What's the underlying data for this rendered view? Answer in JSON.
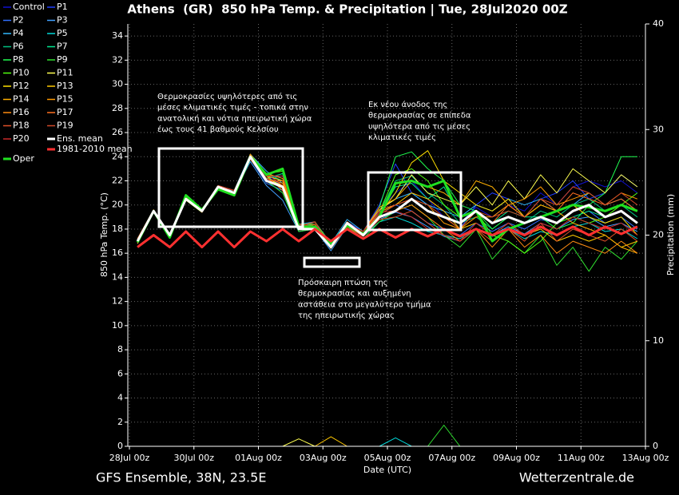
{
  "chart_data": {
    "type": "line",
    "title": "Athens  (GR)  850 hPa Temp. & Precipitation | Tue, 28Jul2020 00Z",
    "ylabel": "850 hPa Temp. (°C)",
    "y2label": "Precipitation (mm)",
    "xlabel": "Date (UTC)",
    "source_left": "GFS Ensemble, 38N, 23.5E",
    "source_right": "Wetterzentrale.de",
    "grid": true,
    "xlim": [
      0,
      16
    ],
    "xticks": [
      {
        "value": 0,
        "label": "28Jul 00z"
      },
      {
        "value": 2,
        "label": "30Jul 00z"
      },
      {
        "value": 4,
        "label": "01Aug 00z"
      },
      {
        "value": 6,
        "label": "03Aug 00z"
      },
      {
        "value": 8,
        "label": "05Aug 00z"
      },
      {
        "value": 10,
        "label": "07Aug 00z"
      },
      {
        "value": 12,
        "label": "09Aug 00z"
      },
      {
        "value": 14,
        "label": "11Aug 00z"
      },
      {
        "value": 16,
        "label": "13Aug 00z"
      }
    ],
    "ylim": [
      0,
      35
    ],
    "yticks": [
      0,
      2,
      4,
      6,
      8,
      10,
      12,
      14,
      16,
      18,
      20,
      22,
      24,
      26,
      28,
      30,
      32,
      34
    ],
    "y2lim": [
      0,
      40
    ],
    "y2ticks": [
      0,
      10,
      20,
      30,
      40
    ],
    "x": [
      0.25,
      0.75,
      1.25,
      1.75,
      2.25,
      2.75,
      3.25,
      3.75,
      4.25,
      4.75,
      5.25,
      5.75,
      6.25,
      6.75,
      7.25,
      7.75,
      8.25,
      8.75,
      9.25,
      9.75,
      10.25,
      10.75,
      11.25,
      11.75,
      12.25,
      12.75,
      13.25,
      13.75,
      14.25,
      14.75,
      15.25,
      15.75
    ],
    "series": [
      {
        "name": "Control",
        "color": "#1010d0",
        "values": [
          17,
          19.6,
          17.4,
          20.4,
          19.6,
          21.6,
          21.2,
          23.8,
          22.4,
          21.6,
          18.2,
          18.4,
          16.8,
          18.2,
          17.4,
          19.6,
          21,
          22,
          20.5,
          19,
          18.5,
          19.8,
          19,
          20,
          19.5,
          21,
          20,
          21.5,
          22,
          21.5,
          22,
          21
        ]
      },
      {
        "name": "P1",
        "color": "#2040ff",
        "values": [
          16.9,
          19.4,
          17.6,
          20.6,
          19.4,
          21.4,
          21,
          24.2,
          22.2,
          22.4,
          18,
          18.6,
          16.6,
          18.6,
          17.8,
          20,
          23.4,
          21,
          20,
          19.5,
          18,
          20,
          21,
          20.5,
          19,
          20.5,
          21,
          22,
          20.5,
          21,
          22.5,
          21.5
        ]
      },
      {
        "name": "P2",
        "color": "#3070ff",
        "values": [
          17.1,
          19.5,
          17.4,
          20.5,
          19.5,
          21.5,
          21,
          23.8,
          21.8,
          21.2,
          18.2,
          18.2,
          16.4,
          18.4,
          17.6,
          19.2,
          20,
          19.5,
          18.5,
          18,
          17.5,
          18.5,
          17.8,
          18.5,
          18,
          18.8,
          18.5,
          19,
          19.5,
          18.5,
          19,
          18
        ]
      },
      {
        "name": "P3",
        "color": "#40a0ff",
        "values": [
          17,
          19.6,
          17.5,
          20.4,
          19.4,
          21.6,
          21,
          23.6,
          21.6,
          20.4,
          17.8,
          18,
          16.2,
          18.2,
          17.4,
          18.8,
          19.4,
          19,
          18.2,
          17.4,
          17,
          18,
          17.5,
          18.2,
          17.6,
          18.5,
          18,
          18.8,
          19,
          18.2,
          18.5,
          17.8
        ]
      },
      {
        "name": "P4",
        "color": "#30b8ff",
        "values": [
          16.8,
          19.4,
          17.6,
          20.6,
          19.6,
          21.4,
          21.2,
          24.2,
          22.8,
          21.8,
          18.4,
          18.6,
          16.8,
          18.8,
          17.8,
          19.6,
          20.5,
          21,
          20,
          19.5,
          19,
          20,
          19.5,
          20.5,
          20,
          20.5,
          19.5,
          20,
          21,
          20,
          20.5,
          19.5
        ]
      },
      {
        "name": "P5",
        "color": "#00d8d8",
        "values": [
          17,
          19.5,
          17.5,
          20.5,
          19.5,
          21.5,
          21,
          24,
          22,
          21,
          18,
          18.2,
          16.6,
          18.4,
          17.4,
          18.6,
          19,
          18.5,
          17.8,
          17.5,
          17.2,
          18,
          17.4,
          18,
          17.2,
          17.8,
          17.5,
          18.2,
          18.5,
          17.8,
          18,
          17.2
        ]
      },
      {
        "name": "P6",
        "color": "#00c080",
        "values": [
          17.2,
          19.6,
          17.4,
          20.6,
          19.6,
          21.6,
          21,
          24,
          22.6,
          22,
          18.2,
          18.4,
          16.4,
          18.2,
          17.6,
          19.4,
          22,
          22.4,
          21,
          20,
          18.5,
          19,
          18,
          19,
          18.5,
          19.5,
          19,
          20,
          20.5,
          19.5,
          20,
          19
        ]
      },
      {
        "name": "P7",
        "color": "#00e890",
        "values": [
          17,
          19.5,
          17.6,
          20.4,
          19.4,
          21.4,
          20.8,
          23.8,
          22.2,
          22.6,
          18,
          18.2,
          16.6,
          18.6,
          17.4,
          19.2,
          21.5,
          21.8,
          20.5,
          21.5,
          19,
          19.5,
          18.5,
          19.5,
          19,
          19,
          18.5,
          19,
          19.5,
          19,
          19.5,
          18.5
        ]
      },
      {
        "name": "P8",
        "color": "#20ff50",
        "values": [
          16.9,
          19.4,
          17.5,
          20.6,
          19.6,
          21.6,
          21.2,
          24,
          22.4,
          21.4,
          18.2,
          18.6,
          16.8,
          18.4,
          17.6,
          19.8,
          24,
          24.4,
          23,
          22,
          20,
          19.5,
          18,
          19,
          18.5,
          19,
          18,
          18.5,
          20,
          21,
          24,
          24
        ]
      },
      {
        "name": "P9",
        "color": "#30e030",
        "values": [
          17.1,
          19.6,
          17.4,
          20.4,
          19.4,
          21.4,
          21,
          24,
          22,
          21,
          17.8,
          18,
          16.4,
          18.2,
          17.2,
          18.6,
          19.5,
          20,
          19,
          17.5,
          16.5,
          18,
          15.5,
          17,
          16,
          17.5,
          15,
          16.5,
          14.5,
          16.5,
          15.5,
          17
        ]
      },
      {
        "name": "P10",
        "color": "#50ff10",
        "values": [
          17,
          19.5,
          17.5,
          20.5,
          19.5,
          21.5,
          21,
          24.2,
          22.6,
          22.8,
          18.4,
          18.4,
          16.6,
          18.6,
          17.6,
          19.4,
          22.5,
          23,
          22,
          20,
          19,
          19.5,
          17.5,
          17,
          16,
          17,
          18.5,
          19,
          18.5,
          19,
          20,
          21
        ]
      },
      {
        "name": "P11",
        "color": "#ffff50",
        "values": [
          16.8,
          19.4,
          17.6,
          20.6,
          19.6,
          21.6,
          21.2,
          24,
          22.2,
          21.6,
          18.2,
          18.2,
          16.8,
          18.4,
          17.8,
          19.6,
          20.5,
          22.5,
          21,
          20.5,
          20,
          21.5,
          20,
          22,
          20.5,
          22.5,
          21,
          23,
          22,
          21,
          22.5,
          21.5
        ]
      },
      {
        "name": "P12",
        "color": "#ffe000",
        "values": [
          17.2,
          19.6,
          17.4,
          20.4,
          19.4,
          21.4,
          20.8,
          24.2,
          22.4,
          22,
          18,
          18.4,
          16.4,
          18.2,
          17.4,
          19.2,
          21,
          23.5,
          24.5,
          22,
          21,
          20,
          19.5,
          20.5,
          19,
          20,
          19.5,
          20,
          19,
          18.5,
          19,
          17.5
        ]
      },
      {
        "name": "P13",
        "color": "#ffc800",
        "values": [
          17,
          19.5,
          17.5,
          20.5,
          19.5,
          21.5,
          21,
          23.8,
          22,
          21.4,
          18.2,
          18.6,
          16.6,
          18.6,
          17.6,
          19.4,
          20,
          21,
          20.5,
          19.5,
          18,
          18.5,
          17.5,
          18.5,
          17.5,
          18,
          17,
          17.5,
          17,
          17.5,
          16.5,
          17
        ]
      },
      {
        "name": "P14",
        "color": "#ffb000",
        "values": [
          16.9,
          19.4,
          17.6,
          20.4,
          19.6,
          21.6,
          21.2,
          24,
          22.6,
          22.2,
          18.4,
          18.2,
          16.8,
          18.4,
          17.8,
          19.8,
          20.5,
          22,
          21.5,
          21,
          20,
          22,
          21.5,
          20,
          19,
          20,
          19.5,
          18.5,
          18,
          17.5,
          16.5,
          16
        ]
      },
      {
        "name": "P15",
        "color": "#ff9a00",
        "values": [
          17.1,
          19.6,
          17.5,
          20.6,
          19.4,
          21.4,
          21,
          24,
          22.2,
          21.8,
          18,
          18.4,
          16.4,
          18.2,
          17.4,
          19,
          19.5,
          20.5,
          20,
          18.5,
          18,
          19,
          19,
          20,
          20.5,
          21.5,
          20,
          20.5,
          21,
          20,
          21,
          20.5
        ]
      },
      {
        "name": "P16",
        "color": "#ff8c10",
        "values": [
          17,
          19.5,
          17.4,
          20.5,
          19.5,
          21.5,
          20.8,
          24.2,
          22.4,
          21.2,
          18.2,
          18.6,
          16.6,
          18.6,
          17.6,
          19.4,
          19.5,
          20,
          19,
          18,
          17,
          18,
          16.5,
          18,
          16.5,
          17.5,
          16,
          17,
          16.5,
          16,
          17,
          16
        ]
      },
      {
        "name": "P17",
        "color": "#ff7020",
        "values": [
          16.8,
          19.4,
          17.6,
          20.4,
          19.6,
          21.6,
          21.2,
          23.8,
          22,
          22,
          18.4,
          18.2,
          16.8,
          18.4,
          17.8,
          19.6,
          20,
          20.5,
          19.5,
          19,
          18,
          19.5,
          18.5,
          20,
          19,
          20.5,
          19.5,
          21,
          20.5,
          20,
          20.5,
          19.5
        ]
      },
      {
        "name": "P18",
        "color": "#e05028",
        "values": [
          17.2,
          19.6,
          17.5,
          20.6,
          19.4,
          21.4,
          21,
          24,
          22.6,
          21.6,
          18,
          18.4,
          16.4,
          18.2,
          17.4,
          18.8,
          19,
          19.5,
          18.5,
          17.5,
          17,
          18,
          17,
          18,
          17,
          18.5,
          17,
          18,
          17.5,
          17,
          18,
          17
        ]
      },
      {
        "name": "P19",
        "color": "#d04828",
        "values": [
          17,
          19.5,
          17.4,
          20.5,
          19.5,
          21.5,
          21,
          24,
          22.2,
          21.4,
          18.2,
          18.6,
          16.6,
          18.6,
          17.6,
          19.2,
          20,
          20.5,
          20,
          19,
          18.5,
          19.5,
          19,
          19.5,
          19,
          20.5,
          20,
          21.5,
          21,
          20,
          21,
          20
        ]
      },
      {
        "name": "P20",
        "color": "#c82828",
        "values": [
          16.9,
          19.4,
          17.6,
          20.4,
          19.6,
          21.6,
          21.2,
          23.8,
          22.4,
          22.4,
          18.4,
          18.2,
          16.8,
          18.4,
          17.8,
          19.4,
          19.5,
          19,
          18,
          17.5,
          17,
          18.5,
          17.5,
          18.5,
          17.5,
          18.5,
          18,
          19,
          18.5,
          18,
          18.5,
          17.5
        ]
      },
      {
        "name": "Ens. mean",
        "color": "#ffffff",
        "values": [
          17,
          19.5,
          17.5,
          20.5,
          19.5,
          21.5,
          21,
          24,
          22,
          21.5,
          18,
          18,
          16.5,
          18.5,
          17.5,
          19,
          19.5,
          20.5,
          19.5,
          19,
          18.5,
          19.5,
          18.5,
          19,
          18.5,
          19,
          18.5,
          19.5,
          20,
          19,
          19.5,
          18.5
        ]
      },
      {
        "name": "Oper",
        "color": "#20e020",
        "values": [
          16.9,
          19.5,
          17.3,
          20.8,
          19.6,
          21.3,
          20.8,
          24,
          22.5,
          23,
          18.2,
          18.2,
          16.8,
          18.3,
          17.6,
          19,
          21.8,
          22,
          21.5,
          22,
          19,
          19.5,
          17,
          18,
          18.5,
          19,
          19.5,
          20,
          19.8,
          19.5,
          20,
          19.5
        ]
      },
      {
        "name": "1981-2010 mean",
        "color": "#ff3030",
        "values": [
          16.5,
          17.5,
          16.5,
          17.8,
          16.5,
          17.8,
          16.5,
          17.8,
          17,
          18,
          17,
          18,
          17,
          18,
          17.2,
          18,
          17.3,
          18,
          17.4,
          18,
          17.4,
          18,
          17.5,
          18,
          17.5,
          18.2,
          17.5,
          18.2,
          17.5,
          18.2,
          17.6,
          18.2
        ]
      }
    ],
    "precip_series": [
      {
        "name": "P11",
        "color": "#ffff50",
        "axis": "y2",
        "values": [
          0,
          0,
          0,
          0,
          0,
          0,
          0,
          0,
          0,
          0,
          0.7,
          0,
          0,
          0,
          0,
          0,
          0,
          0,
          0,
          0,
          0,
          0,
          0,
          0,
          0,
          0,
          0,
          0,
          0,
          0,
          0,
          0
        ]
      },
      {
        "name": "P13",
        "color": "#ffc800",
        "axis": "y2",
        "values": [
          0,
          0,
          0,
          0,
          0,
          0,
          0,
          0,
          0,
          0,
          0,
          0,
          0.9,
          0,
          0,
          0,
          0,
          0,
          0,
          0,
          0,
          0,
          0,
          0,
          0,
          0,
          0,
          0,
          0,
          0,
          0,
          0
        ]
      },
      {
        "name": "P5",
        "color": "#00d8d8",
        "axis": "y2",
        "values": [
          0,
          0,
          0,
          0,
          0,
          0,
          0,
          0,
          0,
          0,
          0,
          0,
          0,
          0,
          0,
          0,
          0.8,
          0,
          0,
          0,
          0,
          0,
          0,
          0,
          0,
          0,
          0,
          0,
          0,
          0,
          0,
          0
        ]
      },
      {
        "name": "P9",
        "color": "#30e030",
        "axis": "y2",
        "values": [
          0,
          0,
          0,
          0,
          0,
          0,
          0,
          0,
          0,
          0,
          0,
          0,
          0,
          0,
          0,
          0,
          0,
          0,
          0,
          2,
          0,
          0,
          0,
          0,
          0,
          0,
          0,
          0,
          0,
          0,
          0,
          0
        ]
      }
    ],
    "annotations": [
      [
        "Θερμοκρασίες υψηλότερες από τις",
        "μέσες κλιματικές τιμές - τοπικά στην",
        "ανατολική και νότια ηπειρωτική χώρα",
        "έως τους 41 βαθμούς Κελσίου"
      ],
      [
        "Εκ νέου άνοδος της",
        "θερμοκρασίας σε επίπεδα",
        "υψηλότερα από τις μέσες",
        "κλιματικές τιμές"
      ],
      [
        "Πρόσκαιρη πτώση της",
        "θερμοκρασίας και αυξημένη",
        "αστάθεια στο μεγαλύτερο τμήμα",
        "της ηπειρωτικής χώρας"
      ]
    ]
  }
}
